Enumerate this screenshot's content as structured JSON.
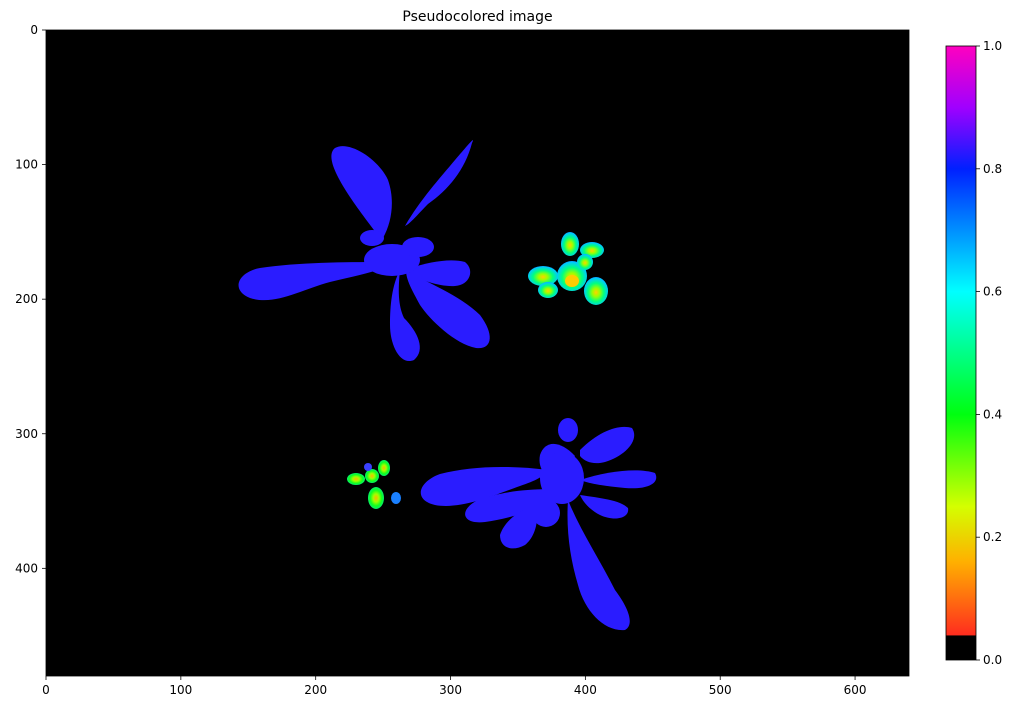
{
  "chart_data": {
    "type": "heatmap",
    "title": "Pseudocolored image",
    "xlabel": "",
    "ylabel": "",
    "xlim": [
      0,
      640
    ],
    "ylim": [
      480,
      0
    ],
    "x_ticks": [
      "0",
      "100",
      "200",
      "300",
      "400",
      "500",
      "600"
    ],
    "y_ticks": [
      "0",
      "100",
      "200",
      "300",
      "400"
    ],
    "grid": false,
    "background_color": "#000000",
    "colorbar": {
      "range": [
        0,
        1
      ],
      "ticks": [
        "0.0",
        "0.2",
        "0.4",
        "0.6",
        "0.8",
        "1.0"
      ],
      "colormap": "gist_rainbow",
      "under_color": "#000000",
      "under_threshold": 0.04
    },
    "regions": [
      {
        "label": "plant",
        "x_range": [
          150,
          330
        ],
        "y_range": [
          85,
          245
        ],
        "dominant_value": 0.78
      },
      {
        "label": "plant",
        "x_range": [
          355,
          415
        ],
        "y_range": [
          150,
          205
        ],
        "dominant_value": 0.45
      },
      {
        "label": "plant",
        "x_range": [
          225,
          265
        ],
        "y_range": [
          318,
          360
        ],
        "dominant_value": 0.35
      },
      {
        "label": "plant",
        "x_range": [
          275,
          455
        ],
        "y_range": [
          290,
          435
        ],
        "dominant_value": 0.78
      }
    ]
  }
}
